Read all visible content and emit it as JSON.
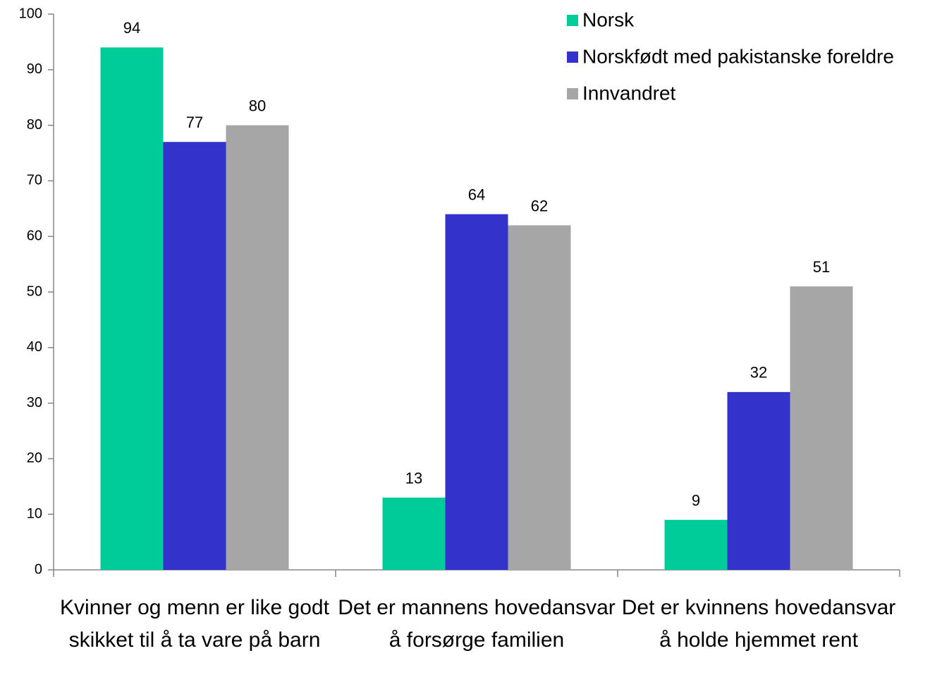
{
  "chart_data": {
    "type": "bar",
    "categories": [
      "Kvinner og menn er like godt skikket til å ta vare på barn",
      "Det er mannens hovedansvar å forsørge familien",
      "Det er kvinnens hovedansvar å holde hjemmet rent"
    ],
    "series": [
      {
        "name": "Norsk",
        "color": "#00cc99",
        "values": [
          94,
          13,
          9
        ]
      },
      {
        "name": "Norskfødt med pakistanske foreldre",
        "color": "#3333cc",
        "values": [
          77,
          64,
          32
        ]
      },
      {
        "name": "Innvandret",
        "color": "#a6a6a6",
        "values": [
          80,
          62,
          51
        ]
      }
    ],
    "ylim": [
      0,
      100
    ],
    "yticks": [
      0,
      10,
      20,
      30,
      40,
      50,
      60,
      70,
      80,
      90,
      100
    ],
    "grid": false,
    "legend": "top-right"
  }
}
